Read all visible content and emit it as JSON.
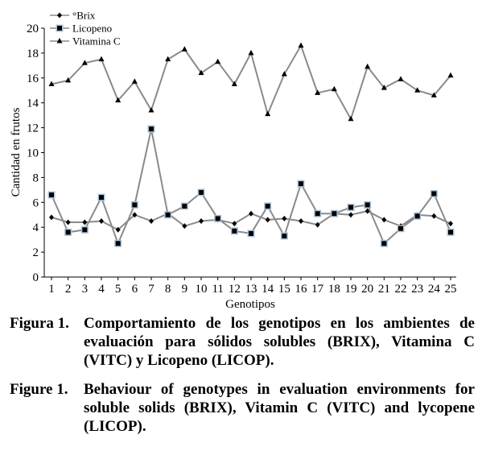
{
  "chart_data": {
    "type": "line",
    "xlabel": "Genotipos",
    "ylabel": "Cantidad en frutos",
    "ylim": [
      0,
      20
    ],
    "yticks": [
      0,
      2,
      4,
      6,
      8,
      10,
      12,
      14,
      16,
      18,
      20
    ],
    "categories": [
      "1",
      "2",
      "3",
      "4",
      "5",
      "6",
      "7",
      "8",
      "9",
      "10",
      "11",
      "12",
      "13",
      "14",
      "15",
      "16",
      "17",
      "18",
      "19",
      "20",
      "21",
      "22",
      "23",
      "24",
      "25"
    ],
    "legend_position": "top-left",
    "grid": false,
    "series": [
      {
        "name": "°Brix",
        "marker": "diamond",
        "color": "#000000",
        "line_color": "#8a8a8a",
        "values": [
          4.8,
          4.4,
          4.4,
          4.5,
          3.8,
          5.0,
          4.5,
          5.1,
          4.1,
          4.5,
          4.6,
          4.3,
          5.1,
          4.6,
          4.7,
          4.5,
          4.2,
          5.1,
          5.0,
          5.3,
          4.6,
          4.1,
          5.0,
          4.9,
          4.3
        ]
      },
      {
        "name": "Licopeno",
        "marker": "square",
        "color": "#000000",
        "line_color": "#8a8a8a",
        "values": [
          6.6,
          3.6,
          3.8,
          6.4,
          2.7,
          5.8,
          11.9,
          5.0,
          5.7,
          6.8,
          4.7,
          3.7,
          3.5,
          5.7,
          3.3,
          7.5,
          5.1,
          5.1,
          5.6,
          5.8,
          2.7,
          3.9,
          4.9,
          6.7,
          3.6
        ]
      },
      {
        "name": "Vitamina C",
        "marker": "triangle",
        "color": "#000000",
        "line_color": "#8a8a8a",
        "values": [
          15.5,
          15.8,
          17.2,
          17.5,
          14.2,
          15.7,
          13.4,
          17.5,
          18.3,
          16.4,
          17.3,
          15.5,
          18.0,
          13.1,
          16.3,
          18.6,
          14.8,
          15.1,
          12.7,
          16.9,
          15.2,
          15.9,
          15.0,
          14.6,
          16.2
        ]
      }
    ]
  },
  "captions": {
    "es": {
      "label": "Figura 1.",
      "text": "Comportamiento de los genotipos en los ambientes de evaluación para sólidos solubles (BRIX), Vitamina C (VITC) y Licopeno (LICOP)."
    },
    "en": {
      "label": "Figure 1.",
      "text": "Behaviour of genotypes in evaluation environments for soluble solids (BRIX), Vitamin C (VITC) and lycopene (LICOP)."
    }
  }
}
